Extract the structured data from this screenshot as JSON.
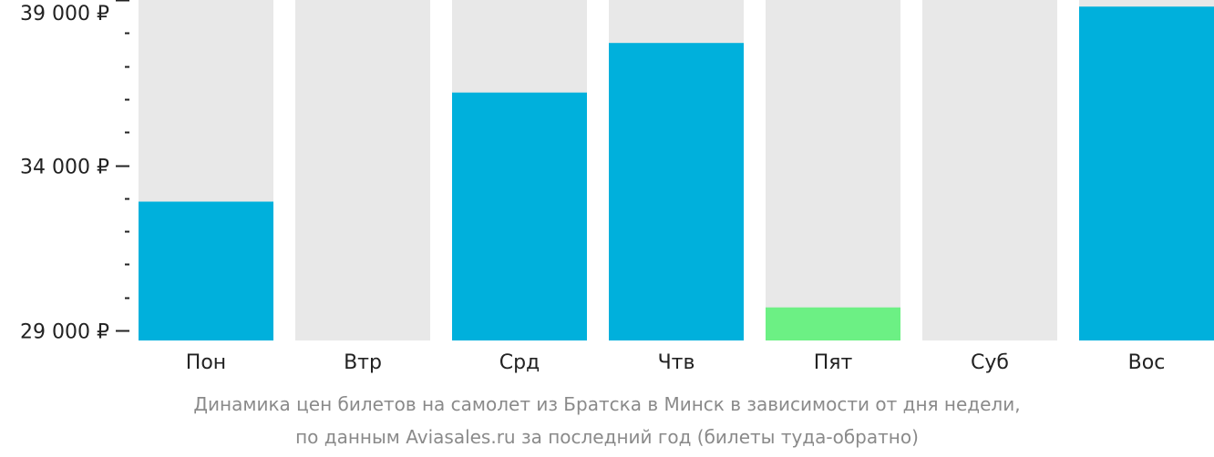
{
  "chart_data": {
    "type": "bar",
    "categories": [
      "Пон",
      "Втр",
      "Срд",
      "Чтв",
      "Пят",
      "Суб",
      "Вос"
    ],
    "values": [
      32900,
      null,
      36200,
      37700,
      29700,
      null,
      38800
    ],
    "bar_colors": [
      "#00b0dc",
      null,
      "#00b0dc",
      "#00b0dc",
      "#6cf084",
      null,
      "#00b0dc"
    ],
    "track_color": "#e8e8e8",
    "ylim": [
      28700,
      39000
    ],
    "yticks": [
      {
        "value": 39000,
        "label": "39 000 ₽"
      },
      {
        "value": 34000,
        "label": "34 000 ₽"
      },
      {
        "value": 29000,
        "label": "29 000 ₽"
      }
    ],
    "minor_tick_step": 1000,
    "caption": [
      "Динамика цен билетов на самолет из Братска в Минск в зависимости от дня недели,",
      "по данным Aviasales.ru за последний год (билеты туда-обратно)"
    ]
  }
}
